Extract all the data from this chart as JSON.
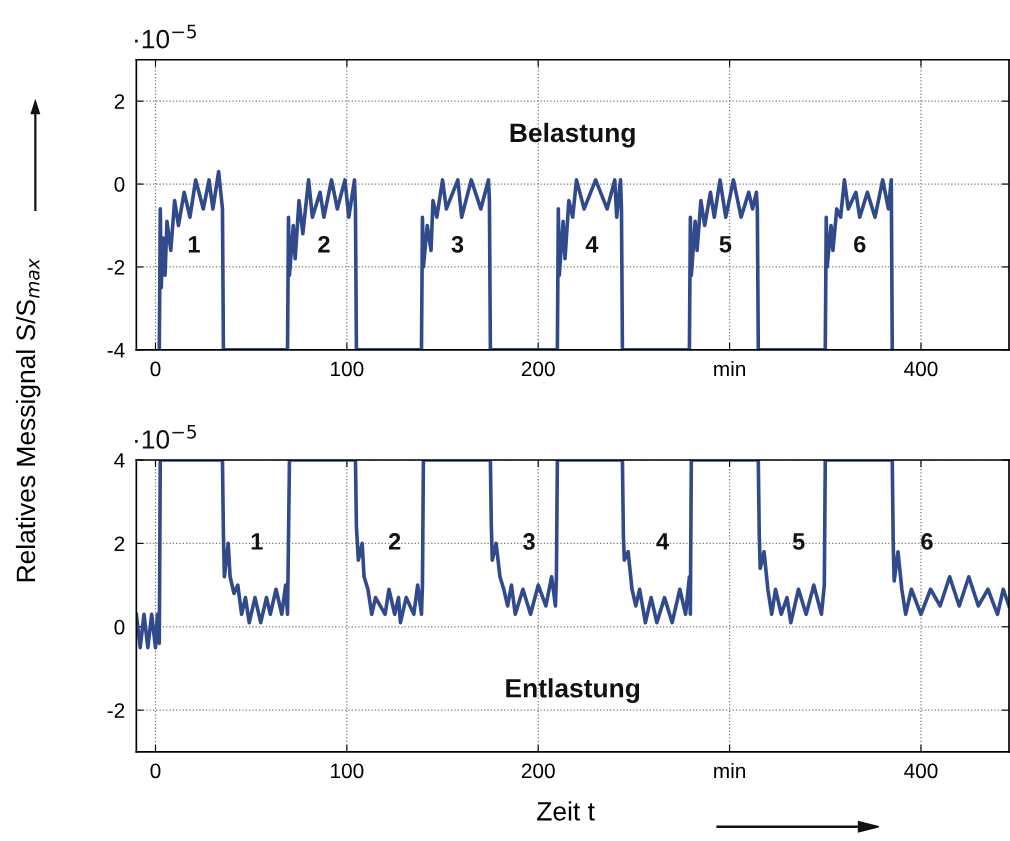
{
  "chart_data": [
    {
      "type": "line",
      "ylabel": "Relatives Messignal S/S$_{max}$",
      "xlim": [
        -10,
        446
      ],
      "ylim": [
        -4,
        3
      ],
      "xticks": [
        0,
        100,
        200,
        {
          "value": 300,
          "label": "min"
        },
        400
      ],
      "yticks": [
        -4,
        -2,
        0,
        2
      ],
      "grid": true,
      "marker": "none",
      "line_style": "solid",
      "annotations": [
        "·10$^{−5}$",
        "Belastung",
        "1",
        "2",
        "3",
        "4",
        "5",
        "6"
      ],
      "series": [
        {
          "color": "#304a8c",
          "x": [
            2,
            2.5,
            3,
            4,
            5,
            6,
            8,
            10,
            12,
            15,
            18,
            21,
            25,
            28,
            30,
            33,
            35,
            35.5,
            69,
            69.5,
            70,
            72,
            73,
            75,
            77,
            80,
            82,
            86,
            88,
            92,
            95,
            99,
            101,
            104,
            104.5,
            105,
            139,
            139.5,
            140,
            142,
            144,
            145,
            147,
            150,
            152,
            158,
            160,
            165,
            170,
            174,
            174.5,
            175,
            210,
            210.5,
            211,
            213,
            214,
            216,
            218,
            220,
            224,
            230,
            236,
            240,
            241,
            243,
            243.5,
            244,
            279,
            279.5,
            280,
            282,
            283,
            285,
            287,
            290,
            292,
            295,
            298,
            302,
            306,
            310,
            312,
            314,
            314.5,
            315,
            350,
            350.5,
            351,
            353,
            354,
            356,
            358,
            360,
            362,
            366,
            368,
            372,
            376,
            380,
            383,
            384.5,
            385
          ],
          "values": [
            -4,
            -0.6,
            -2.5,
            -1.3,
            -2.2,
            -0.9,
            -1.6,
            -0.4,
            -1.0,
            -0.2,
            -0.8,
            0.1,
            -0.6,
            0.1,
            -0.6,
            0.3,
            -0.6,
            -4,
            -4,
            -0.8,
            -2.2,
            -1.0,
            -1.8,
            -0.4,
            -1.2,
            0.1,
            -0.8,
            -0.2,
            -0.8,
            0.1,
            -0.6,
            0.1,
            -0.8,
            0.1,
            -0.6,
            -4,
            -4,
            -0.8,
            -2.0,
            -1.0,
            -1.6,
            -0.4,
            -0.8,
            0.1,
            -0.6,
            0.1,
            -0.8,
            0.1,
            -0.6,
            0.1,
            -0.4,
            -4,
            -4,
            -0.6,
            -2.2,
            -0.9,
            -1.8,
            -0.4,
            -0.8,
            0.1,
            -0.6,
            0.1,
            -0.6,
            0.1,
            -0.8,
            0.1,
            -0.6,
            -4,
            -4,
            -0.8,
            -2.2,
            -0.9,
            -1.6,
            -0.4,
            -1.0,
            -0.2,
            -0.8,
            0.1,
            -0.8,
            0.1,
            -0.8,
            -0.2,
            -0.6,
            -0.2,
            -0.6,
            -4,
            -4,
            -0.8,
            -2.0,
            -1.0,
            -1.6,
            -0.6,
            -0.8,
            0.1,
            -0.6,
            -0.2,
            -0.8,
            -0.2,
            -0.8,
            0.1,
            -0.6,
            0.1,
            -4
          ]
        }
      ]
    },
    {
      "type": "line",
      "xlabel": "Zeit t",
      "xlim": [
        -10,
        446
      ],
      "ylim": [
        -3,
        4
      ],
      "xticks": [
        0,
        100,
        200,
        {
          "value": 300,
          "label": "min"
        },
        400
      ],
      "yticks": [
        -2,
        0,
        2,
        4
      ],
      "grid": true,
      "marker": "none",
      "line_style": "solid",
      "annotations": [
        "·10$^{−5}$",
        "Entlastung",
        "1",
        "2",
        "3",
        "4",
        "5",
        "6"
      ],
      "series": [
        {
          "color": "#304a8c",
          "x": [
            -10,
            -8,
            -6,
            -4,
            -2,
            0,
            1,
            2,
            2.5,
            35,
            35.5,
            36,
            38,
            39,
            41,
            43,
            45,
            47,
            49,
            52,
            55,
            58,
            60,
            63,
            66,
            68,
            69,
            69.5,
            70,
            104.5,
            105,
            106,
            108,
            109,
            111,
            113,
            115,
            120,
            122,
            125,
            127,
            128,
            131,
            135,
            137,
            139,
            139.5,
            140,
            175,
            175.5,
            176,
            178,
            180,
            182,
            184,
            186,
            188,
            192,
            196,
            200,
            204,
            207,
            209,
            209.5,
            210,
            244,
            244.5,
            245,
            247,
            249,
            251,
            253,
            256,
            259,
            262,
            266,
            270,
            274,
            277,
            279,
            279.5,
            280,
            315,
            315.5,
            316,
            318,
            320,
            322,
            324,
            327,
            330,
            332,
            336,
            340,
            344,
            348,
            349.5,
            350,
            385,
            385.5,
            386,
            388,
            390,
            392,
            395,
            400,
            405,
            410,
            415,
            420,
            425,
            430,
            435,
            440,
            443,
            446
          ],
          "values": [
            0.3,
            -0.5,
            0.3,
            -0.5,
            0.3,
            -0.5,
            0.3,
            -0.4,
            4,
            4,
            2.2,
            1.2,
            2.0,
            1.2,
            0.8,
            1.0,
            0.3,
            0.7,
            0.1,
            0.7,
            0.1,
            0.7,
            0.3,
            0.9,
            0.3,
            1.0,
            0.3,
            2.1,
            4,
            4,
            2.4,
            1.6,
            2.0,
            1.2,
            0.9,
            0.3,
            0.7,
            0.3,
            0.9,
            0.3,
            0.7,
            0.1,
            0.7,
            0.3,
            1.0,
            0.3,
            1.0,
            4,
            4,
            2.4,
            1.6,
            2.0,
            1.2,
            0.9,
            0.5,
            1.0,
            0.3,
            0.9,
            0.3,
            1.0,
            0.5,
            1.2,
            0.5,
            1.2,
            4,
            4,
            2.2,
            1.6,
            1.8,
            0.9,
            0.5,
            0.9,
            0.1,
            0.7,
            0.1,
            0.7,
            0.1,
            0.9,
            0.3,
            1.2,
            0.3,
            4,
            4,
            2.2,
            1.4,
            1.8,
            0.9,
            0.3,
            0.9,
            0.3,
            0.7,
            0.1,
            0.9,
            0.3,
            1.0,
            0.3,
            1.0,
            4,
            4,
            2.0,
            1.1,
            1.8,
            0.9,
            0.3,
            0.9,
            0.3,
            0.9,
            0.5,
            1.2,
            0.5,
            1.2,
            0.5,
            0.9,
            0.3,
            0.9,
            0.5
          ]
        }
      ]
    }
  ]
}
